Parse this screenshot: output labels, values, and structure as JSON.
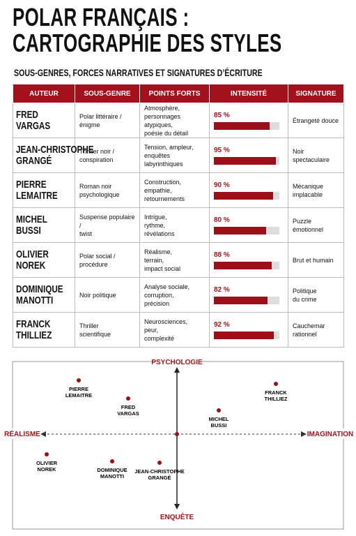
{
  "header": {
    "title": [
      "POLAR FRANÇAIS :",
      "CARTOGRAPHIE DES STYLES"
    ],
    "subtitle": "SOUS-GENRES, FORCES NARRATIVES ET SIGNATURES D’ÉCRITURE"
  },
  "table": {
    "columns": [
      "AUTEUR",
      "SOUS-GENRE",
      "POINTS FORTS",
      "INTENSITÉ",
      "SIGNATURE"
    ],
    "intensity_lim": [
      0,
      100
    ],
    "rows": [
      {
        "author": [
          "FRED",
          "VARGAS"
        ],
        "subgenre": [
          "Polar littéraire /",
          "énigme"
        ],
        "strengths": [
          "Atmosphère,",
          "personnages atypiques,",
          "poésie du détail"
        ],
        "intensity": {
          "value": 85,
          "label": "85 %"
        },
        "signature": [
          "Étrangeté douce"
        ]
      },
      {
        "author": [
          "JEAN-CHRISTOPHE",
          "GRANGÉ"
        ],
        "subgenre": [
          "Thriller noir /",
          "conspiration"
        ],
        "strengths": [
          "Tension, ampleur,",
          "enquêtes",
          "labyrinthiques"
        ],
        "intensity": {
          "value": 95,
          "label": "95 %"
        },
        "signature": [
          "Noir spectaculaire"
        ]
      },
      {
        "author": [
          "PIERRE",
          "LEMAITRE"
        ],
        "subgenre": [
          "Roman noir",
          "psychologique"
        ],
        "strengths": [
          "Construction,",
          "empathie,",
          "retournements"
        ],
        "intensity": {
          "value": 90,
          "label": "90 %"
        },
        "signature": [
          "Mécanique",
          "implacable"
        ]
      },
      {
        "author": [
          "MICHEL",
          "BUSSI"
        ],
        "subgenre": [
          "Suspense populaire /",
          "twist"
        ],
        "strengths": [
          "Intrigue,",
          "rythme,",
          "révélations"
        ],
        "intensity": {
          "value": 80,
          "label": "80 %"
        },
        "signature": [
          "Puzzle",
          "émotionnel"
        ]
      },
      {
        "author": [
          "OLIVIER",
          "NOREK"
        ],
        "subgenre": [
          "Polar social /",
          "procédure"
        ],
        "strengths": [
          "Réalisme,",
          "terrain,",
          "impact social"
        ],
        "intensity": {
          "value": 88,
          "label": "88 %"
        },
        "signature": [
          "Brut et humain"
        ]
      },
      {
        "author": [
          "DOMINIQUE",
          "MANOTTI"
        ],
        "subgenre": [
          "Noir politique"
        ],
        "strengths": [
          "Analyse sociale,",
          "corruption,",
          "précision"
        ],
        "intensity": {
          "value": 82,
          "label": "82 %"
        },
        "signature": [
          "Politique",
          "du crime"
        ]
      },
      {
        "author": [
          "FRANCK",
          "THILLIEZ"
        ],
        "subgenre": [
          "Thriller",
          "scientifique"
        ],
        "strengths": [
          "Neurosciences,",
          "peur,",
          "complexité"
        ],
        "intensity": {
          "value": 92,
          "label": "92 %"
        },
        "signature": [
          "Cauchemar",
          "rationnel"
        ]
      }
    ]
  },
  "map": {
    "top": "PSYCHOLOGIE",
    "bottom": "ENQUÊTE",
    "left": "RÉALISME",
    "right": "IMAGINATION",
    "points": [
      [
        "PIERRE",
        "LEMAITRE"
      ],
      [
        "FRED",
        "VARGAS"
      ],
      [
        "MICHEL",
        "BUSSI"
      ],
      [
        "FRANCK",
        "THILLIEZ"
      ],
      [
        "OLIVIER",
        "NOREK"
      ],
      [
        "DOMINIQUE",
        "MANOTTI"
      ],
      [
        "JEAN-CHRISTOPHE",
        "GRANGÉ"
      ]
    ]
  }
}
